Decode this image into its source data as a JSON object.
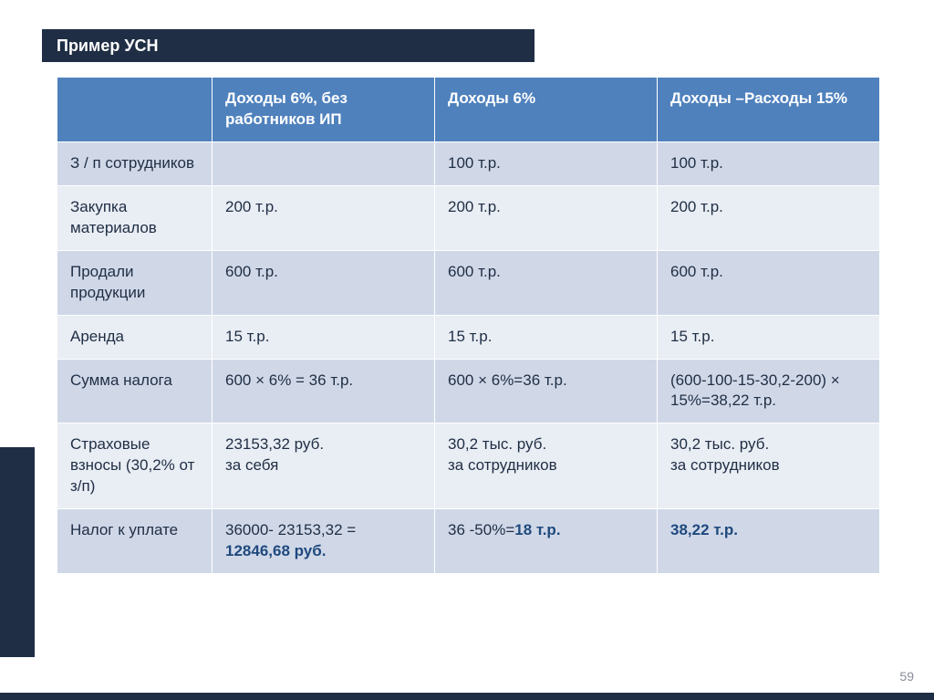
{
  "title": "Пример УСН",
  "table": {
    "headers": [
      "",
      "Доходы 6%,\nбез работников ИП",
      "Доходы 6%",
      "Доходы –Расходы 15%"
    ],
    "rows": [
      {
        "label": "З / п сотрудников",
        "cells": [
          "",
          "100 т.р.",
          "100 т.р."
        ]
      },
      {
        "label": "Закупка материалов",
        "cells": [
          "200 т.р.",
          "200 т.р.",
          "200 т.р."
        ]
      },
      {
        "label": "Продали продукции",
        "cells": [
          "600 т.р.",
          "600 т.р.",
          "600 т.р."
        ]
      },
      {
        "label": "Аренда",
        "cells": [
          "15 т.р.",
          "15 т.р.",
          "15 т.р."
        ]
      },
      {
        "label": "Сумма налога",
        "cells": [
          "600 × 6% = 36 т.р.",
          "600 × 6%=36 т.р.",
          "(600-100-15-30,2-200) × 15%=38,22 т.р."
        ]
      },
      {
        "label": "Страховые взносы (30,2% от з/п)",
        "cells": [
          "23153,32 руб.\nза себя",
          "30,2 тыс. руб.\nза сотрудников",
          "30,2 тыс. руб.\nза сотрудников"
        ]
      },
      {
        "label": "Налог к уплате",
        "cells": [
          "36000- 23153,32 = |12846,68 руб.|",
          "36 -50%=|18 т.р.|",
          "|38,22  т.р.|"
        ]
      }
    ]
  },
  "page_number": "59",
  "colors": {
    "title_bg": "#1f2e44",
    "header_bg": "#4f81bd",
    "row_odd_bg": "#d0d8e8",
    "row_even_bg": "#e9edf4",
    "bold_accent": "#1f497d"
  }
}
